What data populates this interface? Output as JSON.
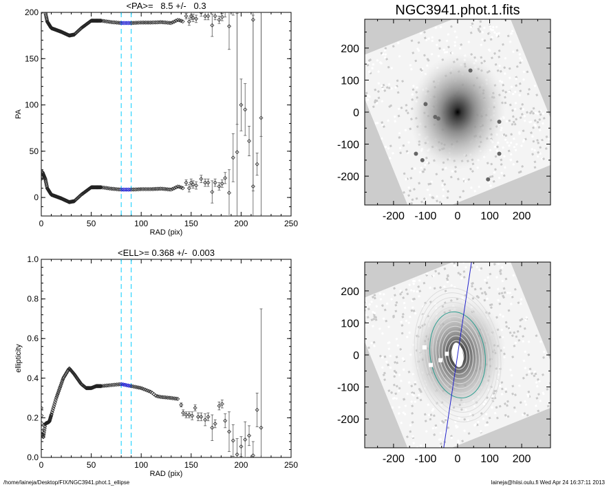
{
  "footer": {
    "left": "/home/laineja/Desktop/FIX/NGC3941.phot.1_ellipse",
    "right": "laineja@hiisi.oulu.fi  Wed Apr 24 16:37:11 2013"
  },
  "colors": {
    "axis": "#000000",
    "points": "#333333",
    "errorbar": "#555555",
    "fit_range": "#00ccff",
    "fit_points": "#0000cc",
    "image_bg": "#cccccc"
  },
  "chart_data": [
    {
      "type": "scatter",
      "title": "<PA>=   8.5 +/-   0.3",
      "xlabel": "RAD (pix)",
      "ylabel": "PA",
      "xlim": [
        0,
        250
      ],
      "ylim": [
        -20,
        200
      ],
      "xticks": [
        "0",
        "50",
        "100",
        "150",
        "200",
        "250"
      ],
      "yticks": [
        "0",
        "50",
        "100",
        "150",
        "200"
      ],
      "ytick_values": [
        0,
        50,
        100,
        150,
        200
      ],
      "xtick_values": [
        0,
        50,
        100,
        150,
        200,
        250
      ],
      "fit_range": [
        80,
        90
      ],
      "mirror_offset": 180,
      "dense_profile": [
        [
          0,
          20
        ],
        [
          1,
          28
        ],
        [
          2,
          25
        ],
        [
          4,
          20
        ],
        [
          6,
          10
        ],
        [
          10,
          3
        ],
        [
          20,
          -1
        ],
        [
          28,
          -5
        ],
        [
          33,
          -4
        ],
        [
          40,
          3
        ],
        [
          50,
          11
        ],
        [
          60,
          11
        ],
        [
          70,
          9.5
        ],
        [
          80,
          8.5
        ],
        [
          90,
          8.5
        ],
        [
          100,
          9
        ],
        [
          110,
          9
        ],
        [
          120,
          9.5
        ],
        [
          130,
          8.5
        ],
        [
          137,
          12
        ],
        [
          142,
          10
        ]
      ],
      "points": [
        [
          145,
          16,
          3
        ],
        [
          148,
          10,
          4
        ],
        [
          150,
          16,
          4
        ],
        [
          152,
          14,
          4
        ],
        [
          155,
          13,
          4
        ],
        [
          160,
          20,
          4
        ],
        [
          164,
          16,
          4
        ],
        [
          167,
          16,
          4
        ],
        [
          171,
          6,
          12
        ],
        [
          174,
          16,
          4
        ],
        [
          178,
          12,
          4
        ],
        [
          181,
          15,
          4
        ],
        [
          184,
          21,
          6
        ],
        [
          188,
          5,
          25
        ],
        [
          192,
          43,
          26
        ],
        [
          196,
          49,
          150
        ],
        [
          200,
          100,
          28
        ],
        [
          204,
          95,
          28
        ],
        [
          208,
          61,
          16
        ],
        [
          212,
          12,
          185
        ],
        [
          216,
          36,
          12
        ],
        [
          220,
          86,
          200
        ]
      ]
    },
    {
      "type": "scatter",
      "title": "<ELL>= 0.368 +/-  0.003",
      "xlabel": "RAD (pix)",
      "ylabel": "ellipticity",
      "xlim": [
        0,
        250
      ],
      "ylim": [
        0,
        1
      ],
      "xticks": [
        "0",
        "50",
        "100",
        "150",
        "200",
        "250"
      ],
      "yticks": [
        "0.0",
        "0.2",
        "0.4",
        "0.6",
        "0.8",
        "1.0"
      ],
      "ytick_values": [
        0,
        0.2,
        0.4,
        0.6,
        0.8,
        1.0
      ],
      "xtick_values": [
        0,
        50,
        100,
        150,
        200,
        250
      ],
      "fit_range": [
        80,
        90
      ],
      "dense_profile": [
        [
          0,
          0.25
        ],
        [
          1,
          0.12
        ],
        [
          2,
          0.1
        ],
        [
          4,
          0.17
        ],
        [
          8,
          0.18
        ],
        [
          15,
          0.3
        ],
        [
          22,
          0.4
        ],
        [
          28,
          0.45
        ],
        [
          33,
          0.42
        ],
        [
          40,
          0.37
        ],
        [
          45,
          0.35
        ],
        [
          50,
          0.35
        ],
        [
          55,
          0.36
        ],
        [
          60,
          0.36
        ],
        [
          70,
          0.365
        ],
        [
          80,
          0.37
        ],
        [
          90,
          0.36
        ],
        [
          100,
          0.35
        ],
        [
          110,
          0.33
        ],
        [
          115,
          0.31
        ],
        [
          120,
          0.305
        ],
        [
          130,
          0.3
        ],
        [
          137,
          0.295
        ]
      ],
      "points": [
        [
          140,
          0.265,
          0.01
        ],
        [
          142,
          0.225,
          0.015
        ],
        [
          145,
          0.215,
          0.015
        ],
        [
          148,
          0.215,
          0.015
        ],
        [
          151,
          0.21,
          0.02
        ],
        [
          154,
          0.25,
          0.015
        ],
        [
          157,
          0.205,
          0.02
        ],
        [
          160,
          0.205,
          0.02
        ],
        [
          164,
          0.19,
          0.03
        ],
        [
          167,
          0.205,
          0.02
        ],
        [
          171,
          0.15,
          0.065
        ],
        [
          174,
          0.17,
          0.02
        ],
        [
          178,
          0.26,
          0.02
        ],
        [
          181,
          0.27,
          0.02
        ],
        [
          184,
          0.185,
          0.035
        ],
        [
          188,
          0.13,
          0.1
        ],
        [
          192,
          0.085,
          0.08
        ],
        [
          196,
          0.015,
          0.08
        ],
        [
          200,
          0.055,
          0.05
        ],
        [
          204,
          0.09,
          0.09
        ],
        [
          208,
          0.11,
          0.05
        ],
        [
          212,
          0.01,
          0.07
        ],
        [
          216,
          0.24,
          0.085
        ],
        [
          220,
          0.15,
          0.6
        ]
      ]
    }
  ],
  "images": [
    {
      "title": "NGC3941.phot.1.fits",
      "xticks": [
        "-200",
        "-100",
        "0",
        "100",
        "200"
      ],
      "yticks": [
        "200",
        "100",
        "0",
        "-100",
        "-200"
      ],
      "tick_values": [
        -200,
        -100,
        0,
        100,
        200
      ],
      "range": [
        -290,
        290
      ]
    },
    {
      "title": "",
      "xticks": [
        "-200",
        "-100",
        "0",
        "100",
        "200"
      ],
      "yticks": [
        "200",
        "100",
        "0",
        "-100",
        "-200"
      ],
      "tick_values": [
        -200,
        -100,
        0,
        100,
        200
      ],
      "range": [
        -290,
        290
      ],
      "major_axis_pa": 8.5,
      "ellipticity": 0.368
    }
  ]
}
